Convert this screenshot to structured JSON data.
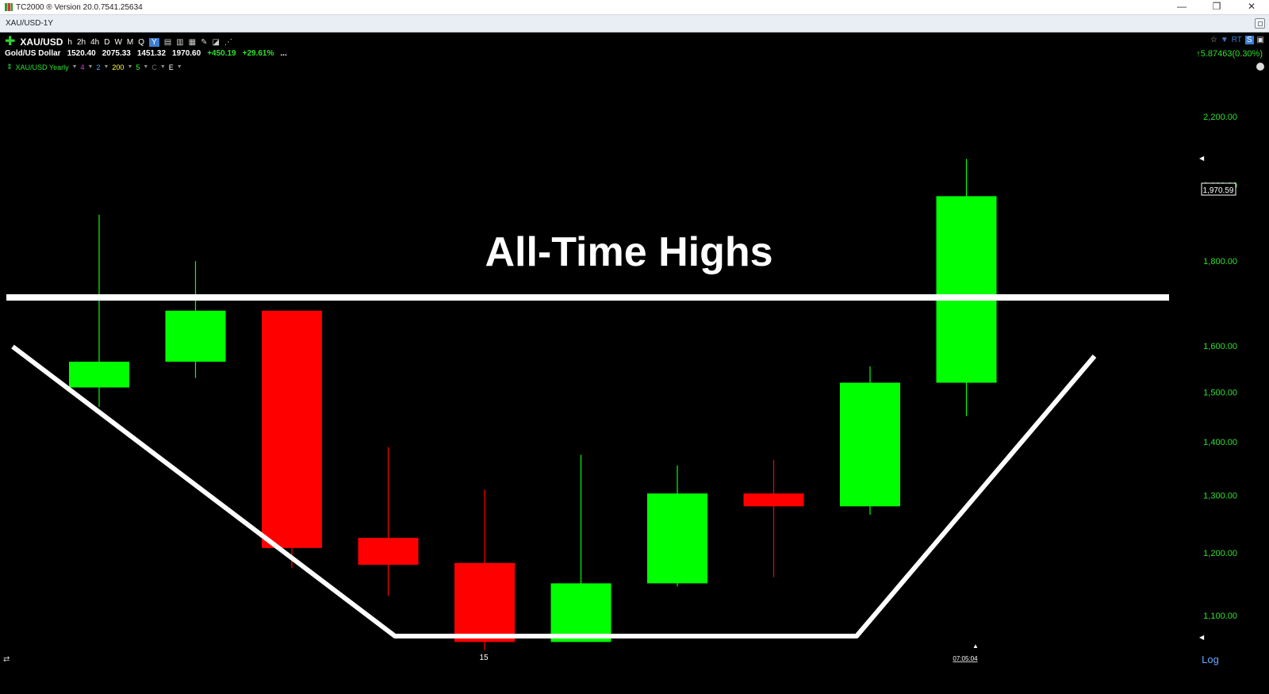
{
  "window": {
    "title": "TC2000 ® Version 20.0.7541.25634",
    "controls": {
      "minimize": "—",
      "restore": "❐",
      "close": "✕"
    }
  },
  "tab": {
    "label": "XAU/USD-1Y"
  },
  "header": {
    "symbol": "XAU/USD",
    "timeframes": [
      "h",
      "2h",
      "4h",
      "D",
      "W",
      "M",
      "Q",
      "Y"
    ],
    "active_timeframe": "Y",
    "name": "Gold/US Dollar",
    "open": "1520.40",
    "high": "2075.33",
    "low": "1451.32",
    "close": "1970.60",
    "change": "+450.19",
    "change_pct": "+29.61%",
    "more": "...",
    "net_change": "↑5.87463(0.30%)"
  },
  "indicator_row": {
    "label": "XAU/USD Yearly",
    "params": [
      {
        "value": "4",
        "color": "#e040e0"
      },
      {
        "value": "2",
        "color": "#40b0ff"
      },
      {
        "value": "200",
        "color": "#ffff40"
      },
      {
        "value": "5",
        "color": "#40ff40"
      },
      {
        "value": "C",
        "color": "#707070"
      },
      {
        "value": "E",
        "color": "#ffffff"
      }
    ]
  },
  "colors": {
    "up": "#00ff00",
    "down": "#ff0000",
    "background": "#000000",
    "axis_text": "#2fe02f"
  },
  "chart_data": {
    "type": "candlestick",
    "title": "All-Time Highs",
    "y_scale": "log",
    "ylim": [
      1035,
      2310
    ],
    "yticks": [
      "2,200.00",
      "2,000.00",
      "1,800.00",
      "1,600.00",
      "1,500.00",
      "1,400.00",
      "1,300.00",
      "1,200.00",
      "1,100.00"
    ],
    "ytick_values": [
      2200,
      2000,
      1800,
      1600,
      1500,
      1400,
      1300,
      1200,
      1100
    ],
    "x_tick_label": "15",
    "time_label": "07:05:04",
    "scale_label": "Log",
    "last_price_label": "1,970.59",
    "last_price": 1970.59,
    "resistance_level": 1700,
    "candles": [
      {
        "open": 1510,
        "high": 1920,
        "low": 1470,
        "close": 1565
      },
      {
        "open": 1565,
        "high": 1800,
        "low": 1530,
        "close": 1680
      },
      {
        "open": 1680,
        "high": 1680,
        "low": 1175,
        "close": 1208
      },
      {
        "open": 1225,
        "high": 1390,
        "low": 1130,
        "close": 1180
      },
      {
        "open": 1183,
        "high": 1310,
        "low": 1048,
        "close": 1060
      },
      {
        "open": 1060,
        "high": 1375,
        "low": 1060,
        "close": 1150
      },
      {
        "open": 1150,
        "high": 1355,
        "low": 1145,
        "close": 1303
      },
      {
        "open": 1303,
        "high": 1365,
        "low": 1160,
        "close": 1280
      },
      {
        "open": 1280,
        "high": 1555,
        "low": 1265,
        "close": 1520
      },
      {
        "open": 1520,
        "high": 2075,
        "low": 1451,
        "close": 1970
      }
    ]
  }
}
